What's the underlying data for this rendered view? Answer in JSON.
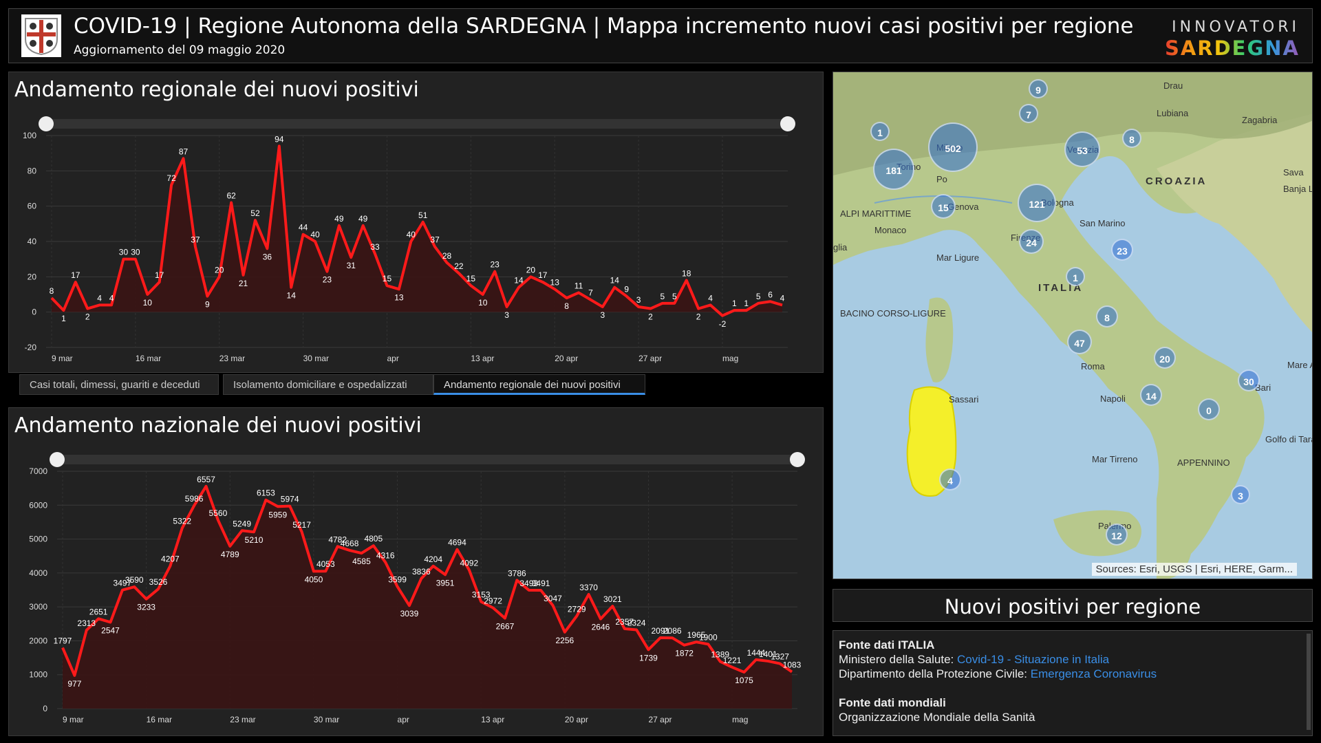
{
  "header": {
    "title": "COVID-19 | Regione Autonoma della SARDEGNA | Mappa incremento nuovi casi positivi per regione",
    "subtitle": "Aggiornamento del 09 maggio 2020",
    "brand_top": "INNOVATORI",
    "brand_bottom": "SARDEGNA"
  },
  "regional_panel": {
    "title": "Andamento regionale dei nuovi positivi"
  },
  "tabs": [
    "Casi totali, dimessi, guariti e deceduti",
    "Isolamento domiciliare e ospedalizzati",
    "Andamento regionale dei nuovi positivi"
  ],
  "active_tab": 2,
  "national_panel": {
    "title": "Andamento nazionale dei nuovi positivi"
  },
  "colors": {
    "line": "#ff1a1a",
    "area": "#3a1414",
    "accent": "#3a8ee6",
    "sardinia": "#f4ef2a"
  },
  "chart_data": [
    {
      "type": "line",
      "title": "Andamento regionale dei nuovi positivi",
      "ylim": [
        -20,
        100
      ],
      "yticks": [
        -20,
        0,
        20,
        40,
        60,
        80,
        100
      ],
      "x_tick_labels": [
        "9 mar",
        "16 mar",
        "23 mar",
        "30 mar",
        "apr",
        "13 apr",
        "20 apr",
        "27 apr",
        "mag"
      ],
      "x_tick_index": [
        0,
        7,
        14,
        21,
        28,
        35,
        42,
        49,
        56
      ],
      "values": [
        8,
        1,
        17,
        2,
        4,
        4,
        30,
        30,
        10,
        17,
        72,
        87,
        37,
        9,
        20,
        62,
        21,
        52,
        36,
        94,
        14,
        44,
        40,
        23,
        49,
        31,
        49,
        33,
        15,
        13,
        40,
        51,
        37,
        28,
        22,
        15,
        10,
        23,
        3,
        14,
        20,
        17,
        13,
        8,
        11,
        7,
        3,
        14,
        9,
        3,
        2,
        5,
        5,
        18,
        2,
        4,
        -2,
        1,
        1,
        5,
        6,
        4
      ],
      "grid": true
    },
    {
      "type": "area",
      "title": "Andamento nazionale dei nuovi positivi",
      "ylim": [
        0,
        7000
      ],
      "yticks": [
        0,
        1000,
        2000,
        3000,
        4000,
        5000,
        6000,
        7000
      ],
      "x_tick_labels": [
        "9 mar",
        "16 mar",
        "23 mar",
        "30 mar",
        "apr",
        "13 apr",
        "20 apr",
        "27 apr",
        "mag"
      ],
      "x_tick_index": [
        0,
        7,
        14,
        21,
        28,
        35,
        42,
        49,
        56
      ],
      "values": [
        1797,
        977,
        2313,
        2651,
        2547,
        3497,
        3590,
        3233,
        3526,
        4207,
        5322,
        5986,
        6557,
        5560,
        4789,
        5249,
        5210,
        6153,
        5959,
        5974,
        5217,
        4050,
        4053,
        4782,
        4668,
        4585,
        4805,
        4316,
        3599,
        3039,
        3836,
        4204,
        3951,
        4694,
        4092,
        3153,
        2972,
        2667,
        3786,
        3493,
        3491,
        3047,
        2256,
        2729,
        3370,
        2646,
        3021,
        2357,
        2324,
        1739,
        2091,
        2086,
        1872,
        1965,
        1900,
        1389,
        1221,
        1075,
        1444,
        1401,
        1327,
        1083
      ],
      "grid": true
    }
  ],
  "map": {
    "labels": [
      "Drau",
      "Lubiana",
      "Zagabria",
      "Milano",
      "Torino",
      "Po",
      "Venezia",
      "CROAZIA",
      "Sava",
      "Banja Lu",
      "Genova",
      "Bologna",
      "ALPI MARITTIME",
      "Monaco",
      "San Marino",
      "Firenze",
      "Mar Ligure",
      "ITALIA",
      "BACINO CORSO-LIGURE",
      "Roma",
      "Mare Adriatico",
      "Bari",
      "Sassari",
      "Napoli",
      "Mar Tirreno",
      "Golfo di Taranto",
      "APPENNINO",
      "Palermo",
      "glia"
    ],
    "markers": [
      {
        "value": "9"
      },
      {
        "value": "7"
      },
      {
        "value": "1"
      },
      {
        "value": "8"
      },
      {
        "value": "502"
      },
      {
        "value": "53"
      },
      {
        "value": "181"
      },
      {
        "value": "15"
      },
      {
        "value": "121"
      },
      {
        "value": "24"
      },
      {
        "value": "23"
      },
      {
        "value": "1"
      },
      {
        "value": "8"
      },
      {
        "value": "47"
      },
      {
        "value": "20"
      },
      {
        "value": "30"
      },
      {
        "value": "14"
      },
      {
        "value": "0"
      },
      {
        "value": "4"
      },
      {
        "value": "3"
      },
      {
        "value": "12"
      }
    ],
    "attribution": "Sources: Esri, USGS | Esri, HERE, Garm..."
  },
  "region_panel_title": "Nuovi positivi per regione",
  "sources": {
    "italy_heading": "Fonte dati ITALIA",
    "ministry_label": "Ministero della Salute:",
    "ministry_link": "Covid-19 - Situazione in Italia",
    "civil_label": "Dipartimento della Protezione Civile:",
    "civil_link": "Emergenza Coronavirus",
    "world_heading": "Fonte dati mondiali",
    "world_org": "Organizzazione Mondiale della Sanità"
  }
}
